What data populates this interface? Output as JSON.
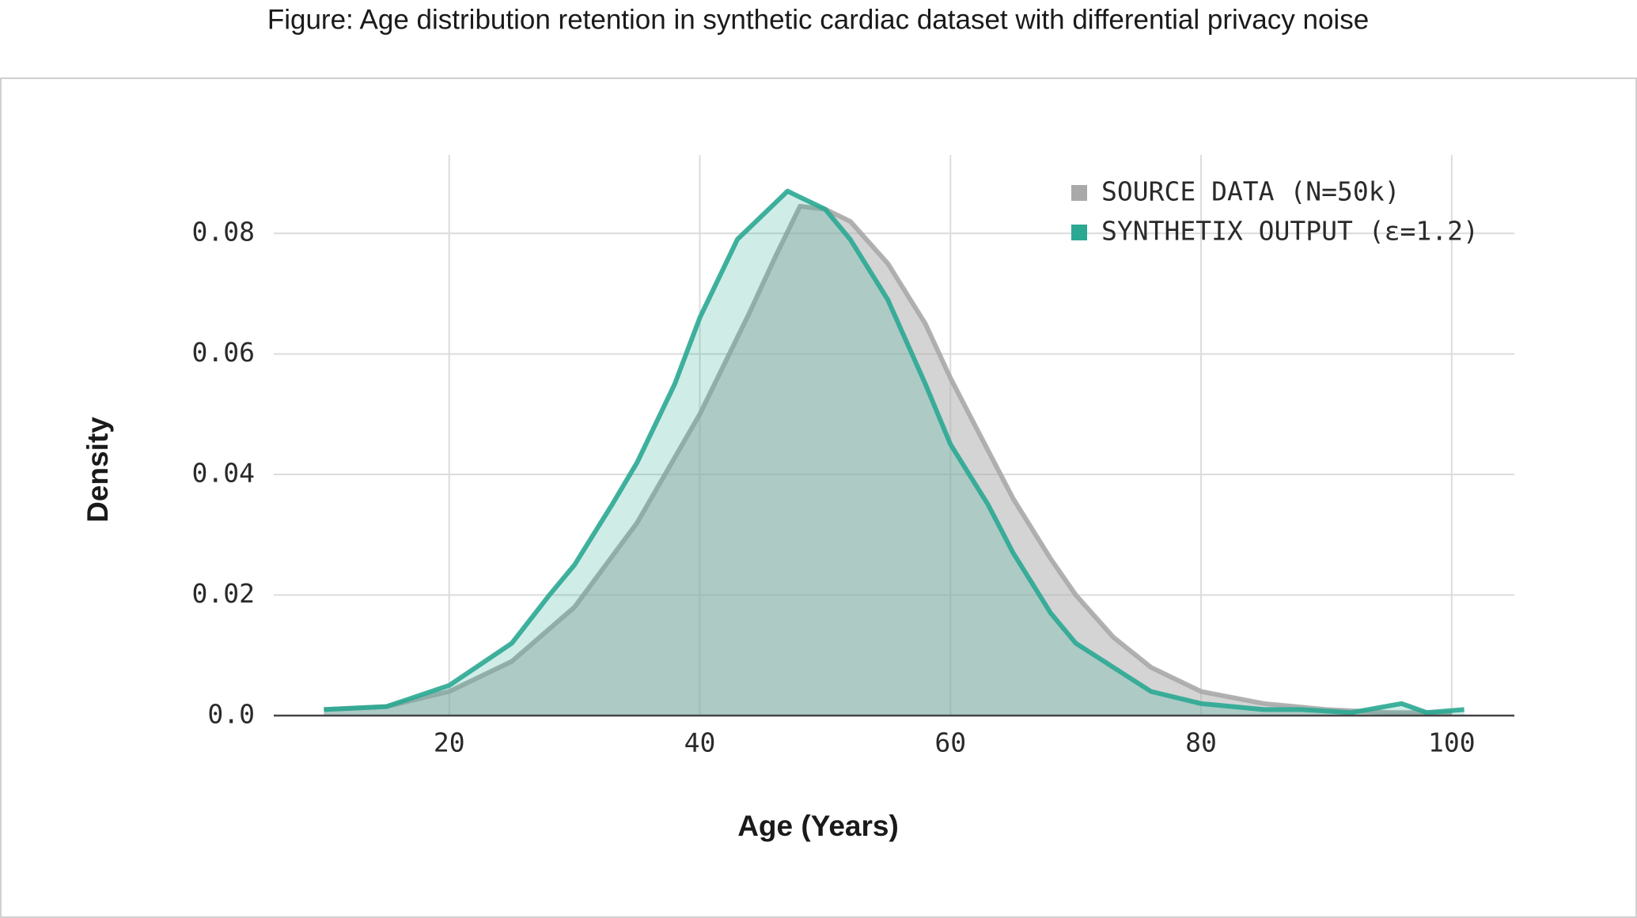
{
  "chart_data": {
    "type": "area",
    "title": "Figure: Age distribution retention in synthetic cardiac dataset with differential privacy noise",
    "x_label": "Age (Years)",
    "y_label": "Density",
    "xlim": [
      6,
      105
    ],
    "ylim": [
      0,
      0.093
    ],
    "xticks": [
      20,
      40,
      60,
      80,
      100
    ],
    "yticks": [
      {
        "value": 0,
        "label": "0.0"
      },
      0.02,
      0.04,
      0.06,
      0.08
    ],
    "grid": true,
    "legend": "upper right",
    "series": [
      {
        "name": "SOURCE DATA (N=50k)",
        "color": "#a9a9a9",
        "x": [
          10,
          15,
          20,
          25,
          30,
          35,
          40,
          44,
          46,
          48,
          50,
          52,
          55,
          58,
          60,
          62,
          65,
          68,
          70,
          73,
          76,
          80,
          85,
          90,
          95,
          100
        ],
        "values": [
          0.001,
          0.0015,
          0.004,
          0.009,
          0.018,
          0.032,
          0.05,
          0.067,
          0.076,
          0.0845,
          0.084,
          0.082,
          0.075,
          0.065,
          0.056,
          0.048,
          0.036,
          0.026,
          0.02,
          0.013,
          0.008,
          0.004,
          0.002,
          0.001,
          0.0005,
          0.0005
        ]
      },
      {
        "name": "SYNTHETIX OUTPUT (ε=1.2)",
        "color": "#2aa892",
        "x": [
          10,
          15,
          20,
          25,
          28,
          30,
          33,
          35,
          38,
          40,
          43,
          46,
          47,
          48,
          50,
          52,
          55,
          58,
          60,
          63,
          65,
          68,
          70,
          73,
          76,
          80,
          85,
          88,
          92,
          96,
          98,
          101
        ],
        "values": [
          0.001,
          0.0015,
          0.005,
          0.012,
          0.02,
          0.025,
          0.035,
          0.042,
          0.055,
          0.066,
          0.079,
          0.085,
          0.087,
          0.086,
          0.084,
          0.079,
          0.069,
          0.055,
          0.045,
          0.035,
          0.027,
          0.017,
          0.012,
          0.008,
          0.004,
          0.002,
          0.001,
          0.001,
          0.0005,
          0.002,
          0.0005,
          0.001
        ]
      }
    ]
  }
}
